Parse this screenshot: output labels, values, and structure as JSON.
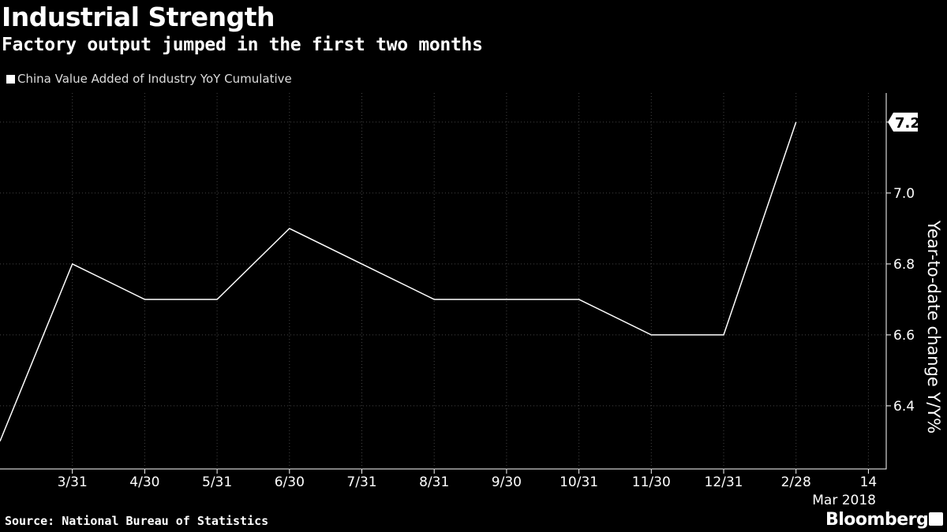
{
  "header": {
    "title": "Industrial Strength",
    "subtitle": "Factory output jumped in the first two months"
  },
  "footer": {
    "source": "Source: National Bureau of Statistics",
    "brand": "Bloomberg"
  },
  "chart_data": {
    "type": "line",
    "title": "Industrial Strength",
    "subtitle": "Factory output jumped in the first two months",
    "legend": [
      "China Value Added of Industry YoY Cumulative"
    ],
    "legend_position": "top-left",
    "ylabel": "Year-to-date change Y/Y%",
    "xlabel_secondary": "Mar 2018",
    "ylim": [
      6.222,
      7.282
    ],
    "yticks": [
      6.4,
      6.6,
      6.8,
      7.0
    ],
    "ytick_labels": [
      "6.4",
      "6.6",
      "6.8",
      "7.0"
    ],
    "xtick_labels": [
      "3/31",
      "4/30",
      "5/31",
      "6/30",
      "7/31",
      "8/31",
      "9/30",
      "10/31",
      "11/30",
      "12/31",
      "2/28",
      "14"
    ],
    "grid": true,
    "series": [
      {
        "name": "China Value Added of Industry YoY Cumulative",
        "color": "#ffffff",
        "x": [
          "2/28/2017",
          "3/31",
          "4/30",
          "5/31",
          "6/30",
          "7/31",
          "8/31",
          "9/30",
          "10/31",
          "11/30",
          "12/31",
          "2/28"
        ],
        "values": [
          6.3,
          6.8,
          6.7,
          6.7,
          6.9,
          6.8,
          6.7,
          6.7,
          6.7,
          6.6,
          6.6,
          7.2
        ]
      }
    ],
    "last_value_label": "7.2"
  }
}
